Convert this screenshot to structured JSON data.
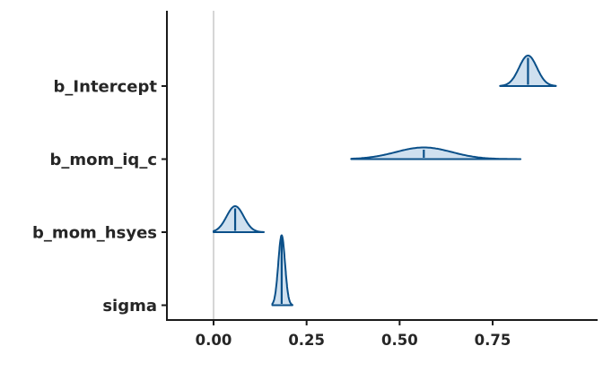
{
  "chart_data": {
    "type": "density",
    "subtype": "posterior-halfeye-ridges",
    "title": "",
    "xlabel": "",
    "ylabel": "",
    "grid": false,
    "legend": "none",
    "background": "#ffffff",
    "x_ticks": [
      "0.00",
      "0.25",
      "0.50",
      "0.75"
    ],
    "x_tick_values": [
      0,
      0.25,
      0.5,
      0.75
    ],
    "xlim": [
      -0.128,
      1.032
    ],
    "reference_line_x": 0,
    "categories": [
      "b_Intercept",
      "b_mom_iq_c",
      "b_mom_hsyes",
      "sigma"
    ],
    "parameters": [
      {
        "name": "b_Intercept",
        "mean": 0.845,
        "sd": 0.024,
        "interval": [
          0.77,
          0.92
        ],
        "peak_height": 34
      },
      {
        "name": "b_mom_iq_c",
        "mean": 0.565,
        "sd": 0.075,
        "interval": [
          0.37,
          0.825
        ],
        "peak_height": 13
      },
      {
        "name": "b_mom_hsyes",
        "mean": 0.058,
        "sd": 0.023,
        "interval": [
          0.0,
          0.135
        ],
        "peak_height": 29
      },
      {
        "name": "sigma",
        "mean": 0.183,
        "sd": 0.009,
        "interval": [
          0.158,
          0.212
        ],
        "peak_height": 78
      }
    ],
    "colors": {
      "outline": "#0b5089",
      "fill": "#cfe0ef",
      "reference_line": "#d6d6d6",
      "axis": "#1a1a1a",
      "tick_label": "#262626"
    }
  }
}
